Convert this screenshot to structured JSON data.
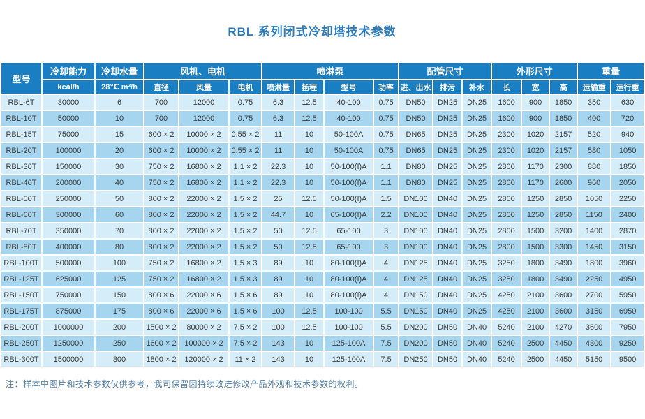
{
  "title": "RBL 系列闭式冷却塔技术参数",
  "note": "注：样本中图片和技术参数仅供参考，我司保留因持续改进修改产品外观和技术参数的权利。",
  "colors": {
    "header_blue": "#1a7ec3",
    "row_light": "#d5edf8",
    "row_medium": "#a6d6ef",
    "title_blue": "#2b7ab9",
    "note_blue": "#4e7ca4"
  },
  "table": {
    "groups": [
      {
        "label": "型号",
        "rowspan": 2,
        "sub": []
      },
      {
        "label": "冷却能力",
        "sub": [
          "kcal/h"
        ]
      },
      {
        "label": "冷却水量",
        "sub": [
          "28℃ m³/h"
        ]
      },
      {
        "label": "风机、电机",
        "sub": [
          "直径",
          "风量",
          "电机"
        ]
      },
      {
        "label": "喷淋泵",
        "sub": [
          "喷淋量",
          "扬程",
          "型号",
          "功率"
        ]
      },
      {
        "label": "配管尺寸",
        "sub": [
          "进、出水",
          "排污",
          "补水"
        ]
      },
      {
        "label": "外形尺寸",
        "sub": [
          "长",
          "宽",
          "高"
        ]
      },
      {
        "label": "重量",
        "sub": [
          "运输重",
          "运行重"
        ]
      }
    ],
    "rows": [
      [
        "RBL-6T",
        "30000",
        "6",
        "700",
        "12000",
        "0.75",
        "6.3",
        "12.5",
        "40-100",
        "0.75",
        "DN50",
        "DN25",
        "DN25",
        "1600",
        "900",
        "1850",
        "350",
        "630"
      ],
      [
        "RBL-10T",
        "50000",
        "10",
        "700",
        "12000",
        "0.75",
        "6.3",
        "12.5",
        "40-100",
        "0.75",
        "DN50",
        "DN25",
        "DN25",
        "1600",
        "900",
        "1850",
        "400",
        "720"
      ],
      [
        "RBL-15T",
        "75000",
        "15",
        "600 × 2",
        "10000 × 2",
        "0.55 × 2",
        "11",
        "10",
        "50-100A",
        "0.75",
        "DN65",
        "DN25",
        "DN25",
        "2300",
        "1020",
        "2157",
        "520",
        "940"
      ],
      [
        "RBL-20T",
        "100000",
        "20",
        "600 × 2",
        "10000 × 2",
        "0.55 × 2",
        "11",
        "10",
        "50-100A",
        "0.75",
        "DN65",
        "DN25",
        "DN25",
        "2300",
        "1020",
        "2157",
        "580",
        "1050"
      ],
      [
        "RBL-30T",
        "150000",
        "30",
        "750 × 2",
        "16800 × 2",
        "1.1 × 2",
        "22.3",
        "10",
        "50-100(I)A",
        "1.1",
        "DN80",
        "DN25",
        "DN25",
        "2800",
        "1170",
        "2300",
        "880",
        "1850"
      ],
      [
        "RBL-40T",
        "200000",
        "40",
        "750 × 2",
        "16800 × 2",
        "1.1 × 2",
        "22.3",
        "10",
        "50-100(I)A",
        "1.1",
        "DN80",
        "DN25",
        "DN25",
        "2800",
        "1170",
        "2600",
        "960",
        "2050"
      ],
      [
        "RBL-50T",
        "250000",
        "50",
        "800 × 2",
        "22000 × 2",
        "1.5 × 2",
        "25",
        "12.5",
        "50-100(I)A",
        "1.5",
        "DN100",
        "DN40",
        "DN25",
        "2800",
        "1250",
        "2850",
        "1050",
        "2250"
      ],
      [
        "RBL-60T",
        "300000",
        "60",
        "800 × 2",
        "22000 × 2",
        "1.5 × 2",
        "44.7",
        "10",
        "65-100(I)A",
        "2.2",
        "DN100",
        "DN40",
        "DN25",
        "2800",
        "1250",
        "2850",
        "1150",
        "2400"
      ],
      [
        "RBL-70T",
        "350000",
        "70",
        "800 × 2",
        "22000 × 2",
        "1.5 × 2",
        "50",
        "12.5",
        "65-100",
        "3",
        "DN100",
        "DN40",
        "DN25",
        "2800",
        "1500",
        "3200",
        "1400",
        "2870"
      ],
      [
        "RBL-80T",
        "400000",
        "80",
        "800 × 2",
        "22000 × 2",
        "1.5 × 2",
        "50",
        "12.5",
        "65-100",
        "3",
        "DN100",
        "DN40",
        "DN25",
        "2800",
        "1500",
        "3300",
        "1450",
        "3150"
      ],
      [
        "RBL-100T",
        "500000",
        "100",
        "750 × 2",
        "16800 × 2",
        "1.5 × 3",
        "89",
        "10",
        "80-100(I)A",
        "4",
        "DN125",
        "DN40",
        "DN25",
        "3250",
        "1800",
        "3490",
        "1800",
        "3960"
      ],
      [
        "RBL-125T",
        "625000",
        "125",
        "750 × 2",
        "16800 × 2",
        "1.5 × 3",
        "89",
        "10",
        "80-100(I)A",
        "4",
        "DN125",
        "DN40",
        "DN25",
        "3250",
        "1800",
        "3490",
        "2250",
        "4950"
      ],
      [
        "RBL-150T",
        "750000",
        "150",
        "800 × 6",
        "22000 × 6",
        "1.5 × 6",
        "89",
        "10",
        "80-100(I)A",
        "4",
        "DN150",
        "DN40",
        "DN25",
        "4250",
        "2100",
        "3600",
        "2700",
        "5950"
      ],
      [
        "RBL-175T",
        "875000",
        "175",
        "800 × 6",
        "22000 × 6",
        "1.5 × 6",
        "100",
        "12.5",
        "100-100",
        "5.5",
        "DN150",
        "DN40",
        "DN25",
        "4250",
        "2100",
        "3600",
        "3150",
        "6950"
      ],
      [
        "RBL-200T",
        "1000000",
        "200",
        "1500 × 2",
        "80000 × 2",
        "7.5 × 2",
        "100",
        "12.5",
        "100-100",
        "5.5",
        "DN200",
        "DN50",
        "DN40",
        "5240",
        "2100",
        "4270",
        "3600",
        "7950"
      ],
      [
        "RBL-250T",
        "1250000",
        "250",
        "1600 × 2",
        "100000 × 2",
        "7.5 × 2",
        "143",
        "10",
        "125-100A",
        "7.5",
        "DN200",
        "DN50",
        "DN40",
        "5240",
        "2500",
        "4450",
        "4300",
        "9250"
      ],
      [
        "RBL-300T",
        "1500000",
        "300",
        "1800 × 2",
        "120000 × 2",
        "11 × 2",
        "143",
        "10",
        "125-100A",
        "7.5",
        "DN250",
        "DN50",
        "DN40",
        "5240",
        "2500",
        "4450",
        "5150",
        "9500"
      ]
    ]
  }
}
